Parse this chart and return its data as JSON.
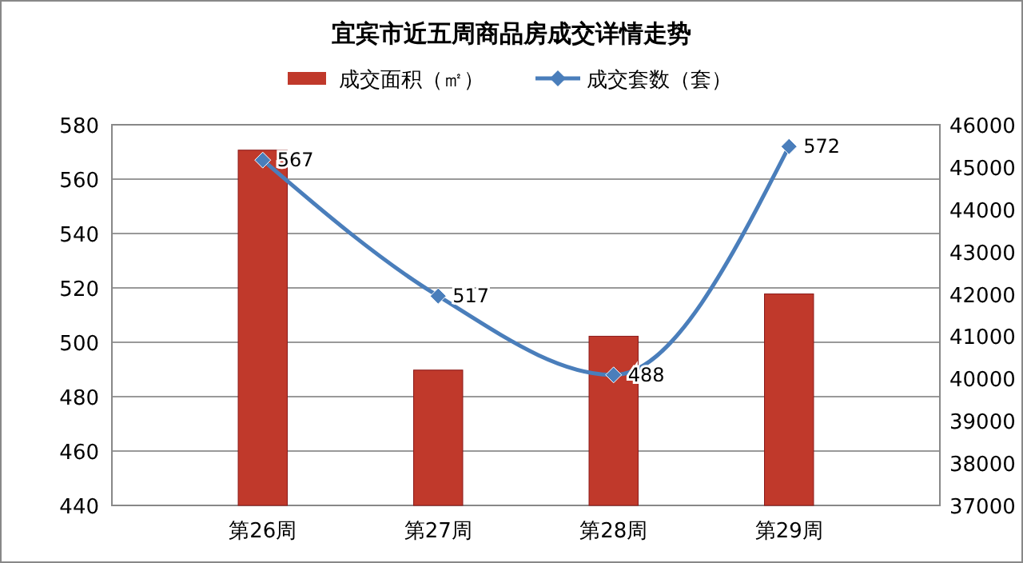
{
  "chart_data": {
    "type": "bar",
    "title": "宜宾市近五周商品房成交详情走势",
    "categories": [
      "第26周",
      "第27周",
      "第28周",
      "第29周"
    ],
    "series": [
      {
        "name": "成交面积（㎡）",
        "axis": "y2",
        "color": "#c0392b",
        "values": [
          45400,
          40200,
          41000,
          42000
        ]
      },
      {
        "name": "成交套数（套）",
        "type": "line",
        "axis": "y",
        "color": "#4a7ebb",
        "marker": "diamond",
        "values": [
          567,
          517,
          488,
          572
        ],
        "value_labels": [
          "567",
          "517",
          "488",
          "572"
        ]
      }
    ],
    "ylim": [
      440,
      580
    ],
    "yticks": [
      440,
      460,
      480,
      500,
      520,
      540,
      560,
      580
    ],
    "y2lim": [
      37000,
      46000
    ],
    "y2ticks": [
      37000,
      38000,
      39000,
      40000,
      41000,
      42000,
      43000,
      44000,
      45000,
      46000
    ],
    "grid": "y",
    "legend": "top"
  }
}
